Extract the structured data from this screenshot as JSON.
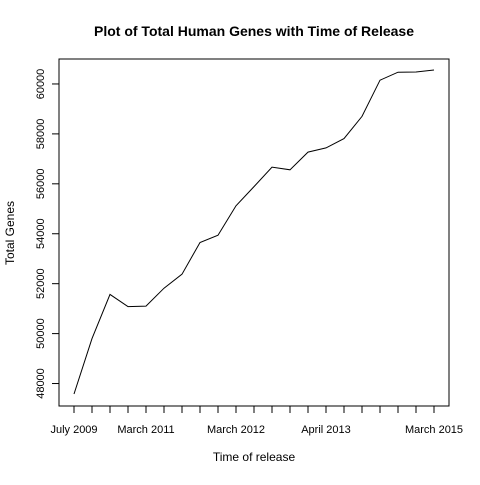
{
  "chart_data": {
    "type": "line",
    "title": "Plot of Total Human Genes with Time of Release",
    "xlabel": "Time of release",
    "ylabel": "Total Genes",
    "x_tick_labels": [
      "July 2009",
      "March 2011",
      "March 2012",
      "April 2013",
      "March 2015"
    ],
    "x_tick_label_index": [
      1,
      5,
      10,
      15,
      21
    ],
    "y_ticks": [
      48000,
      50000,
      52000,
      54000,
      56000,
      58000,
      60000
    ],
    "ylim": [
      47100,
      61000
    ],
    "grid": false,
    "series": [
      {
        "values": [
          47580,
          49800,
          51570,
          51080,
          51100,
          51820,
          52380,
          53650,
          53940,
          55120,
          55890,
          56670,
          56560,
          57270,
          57440,
          57810,
          58700,
          60150,
          60470,
          60480,
          60560
        ]
      }
    ],
    "colors": {
      "line": "#000000",
      "axis": "#000000",
      "background": "#ffffff"
    }
  }
}
